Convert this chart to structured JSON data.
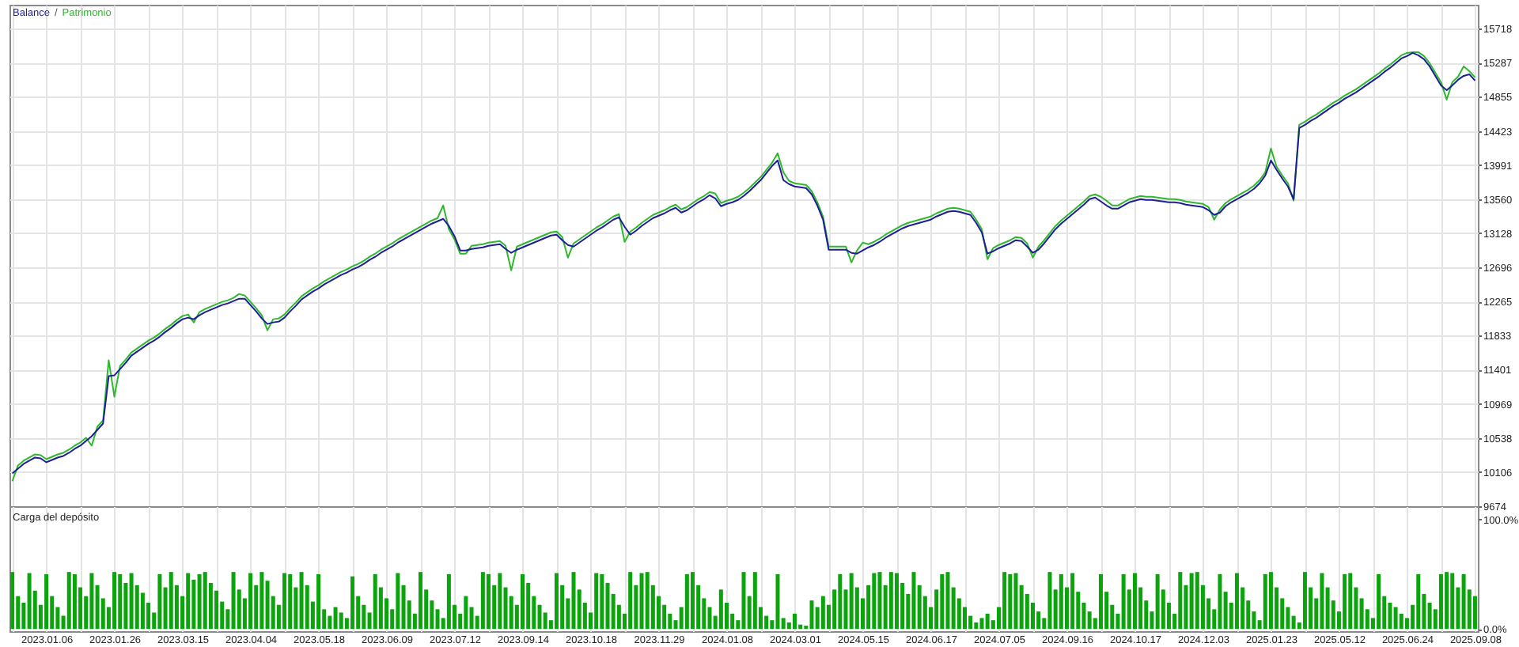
{
  "chart_data": [
    {
      "type": "line",
      "legend": "top left",
      "grid": true,
      "tick_labels": "y",
      "annotations": [
        "/"
      ],
      "categories": [
        null,
        null,
        null,
        null,
        null,
        null,
        "2023.01.06",
        null,
        null,
        null,
        null,
        null,
        null,
        null,
        null,
        null,
        null,
        null,
        "2023.01.26",
        null,
        null,
        null,
        null,
        null,
        null,
        null,
        null,
        null,
        null,
        null,
        "2023.03.15",
        null,
        null,
        null,
        null,
        null,
        null,
        null,
        null,
        null,
        null,
        null,
        "2023.04.04",
        null,
        null,
        null,
        null,
        null,
        null,
        null,
        null,
        null,
        null,
        null,
        "2023.05.18",
        null,
        null,
        null,
        null,
        null,
        null,
        null,
        null,
        null,
        null,
        null,
        "2023.06.09",
        null,
        null,
        null,
        null,
        null,
        null,
        null,
        null,
        null,
        null,
        null,
        "2023.07.12",
        null,
        null,
        null,
        null,
        null,
        null,
        null,
        null,
        null,
        null,
        null,
        "2023.09.14",
        null,
        null,
        null,
        null,
        null,
        null,
        null,
        null,
        null,
        null,
        null,
        "2023.10.18",
        null,
        null,
        null,
        null,
        null,
        null,
        null,
        null,
        null,
        null,
        null,
        "2023.11.29",
        null,
        null,
        null,
        null,
        null,
        null,
        null,
        null,
        null,
        null,
        null,
        "2024.01.08",
        null,
        null,
        null,
        null,
        null,
        null,
        null,
        null,
        null,
        null,
        null,
        "2024.03.01",
        null,
        null,
        null,
        null,
        null,
        null,
        null,
        null,
        null,
        null,
        null,
        "2024.05.15",
        null,
        null,
        null,
        null,
        null,
        null,
        null,
        null,
        null,
        null,
        null,
        "2024.06.17",
        null,
        null,
        null,
        null,
        null,
        null,
        null,
        null,
        null,
        null,
        null,
        "2024.07.05",
        null,
        null,
        null,
        null,
        null,
        null,
        null,
        null,
        null,
        null,
        null,
        "2024.09.16",
        null,
        null,
        null,
        null,
        null,
        null,
        null,
        null,
        null,
        null,
        null,
        "2024.10.17",
        null,
        null,
        null,
        null,
        null,
        null,
        null,
        null,
        null,
        null,
        null,
        "2024.12.03",
        null,
        null,
        null,
        null,
        null,
        null,
        null,
        null,
        null,
        null,
        null,
        "2025.01.23",
        null,
        null,
        null,
        null,
        null,
        null,
        null,
        null,
        null,
        null,
        null,
        "2025.05.12",
        null,
        null,
        null,
        null,
        null,
        null,
        null,
        null,
        null,
        null,
        null,
        "2025.06.24",
        null,
        null,
        null,
        null,
        null,
        null,
        null,
        null,
        null,
        null,
        null,
        "2025.09.08"
      ],
      "ylim": [
        9674,
        16020
      ],
      "yticks": [
        9674,
        10106,
        10538,
        10969,
        11401,
        11833,
        12265,
        12696,
        13128,
        13560,
        13991,
        14423,
        14855,
        15287,
        15718
      ],
      "series": [
        {
          "name": "Balance",
          "color": "#1e1e96",
          "values": [
            10090,
            10150,
            10210,
            10250,
            10290,
            10280,
            10230,
            10260,
            10290,
            10310,
            10350,
            10400,
            10440,
            10500,
            10560,
            10640,
            10720,
            11320,
            11330,
            11410,
            11490,
            11580,
            11630,
            11680,
            11730,
            11770,
            11820,
            11880,
            11930,
            11990,
            12040,
            12060,
            12040,
            12090,
            12130,
            12160,
            12190,
            12220,
            12240,
            12270,
            12300,
            12300,
            12220,
            12140,
            12050,
            11980,
            12000,
            12010,
            12060,
            12140,
            12210,
            12290,
            12340,
            12390,
            12430,
            12480,
            12520,
            12560,
            12600,
            12630,
            12670,
            12700,
            12740,
            12790,
            12830,
            12880,
            12920,
            12960,
            13010,
            13050,
            13090,
            13130,
            13170,
            13210,
            13250,
            13280,
            13310,
            13220,
            13090,
            12910,
            12910,
            12930,
            12940,
            12950,
            12970,
            12980,
            12990,
            12930,
            12880,
            12920,
            12950,
            12980,
            13010,
            13040,
            13070,
            13100,
            13110,
            13040,
            12980,
            12960,
            13010,
            13060,
            13110,
            13160,
            13200,
            13250,
            13300,
            13330,
            13210,
            13110,
            13160,
            13220,
            13270,
            13320,
            13350,
            13380,
            13420,
            13450,
            13390,
            13420,
            13470,
            13520,
            13560,
            13610,
            13570,
            13470,
            13500,
            13520,
            13550,
            13600,
            13660,
            13730,
            13800,
            13890,
            13980,
            14050,
            13800,
            13750,
            13720,
            13710,
            13700,
            13620,
            13480,
            13300,
            12920,
            12920,
            12920,
            12920,
            12880,
            12870,
            12910,
            12950,
            12980,
            13020,
            13070,
            13110,
            13150,
            13190,
            13220,
            13240,
            13260,
            13280,
            13300,
            13340,
            13370,
            13400,
            13410,
            13400,
            13380,
            13360,
            13260,
            13140,
            12870,
            12900,
            12940,
            12970,
            13000,
            13040,
            13030,
            12960,
            12880,
            12920,
            13000,
            13090,
            13180,
            13250,
            13310,
            13370,
            13430,
            13490,
            13560,
            13580,
            13530,
            13480,
            13440,
            13440,
            13480,
            13520,
            13540,
            13560,
            13550,
            13550,
            13540,
            13530,
            13520,
            13520,
            13510,
            13490,
            13480,
            13470,
            13460,
            13420,
            13360,
            13390,
            13470,
            13520,
            13560,
            13600,
            13640,
            13690,
            13760,
            13860,
            14050,
            13930,
            13820,
            13720,
            13560,
            14460,
            14500,
            14550,
            14590,
            14640,
            14690,
            14740,
            14780,
            14830,
            14870,
            14910,
            14960,
            15010,
            15060,
            15110,
            15170,
            15220,
            15280,
            15340,
            15370,
            15410,
            15380,
            15330,
            15240,
            15120,
            15000,
            14940,
            15000,
            15070,
            15120,
            15140,
            15060
          ]
        },
        {
          "name": "Patrimonio",
          "color": "#2fb82f",
          "values": [
            9990,
            10190,
            10250,
            10290,
            10330,
            10320,
            10270,
            10300,
            10330,
            10350,
            10390,
            10440,
            10480,
            10540,
            10440,
            10680,
            10760,
            11520,
            11060,
            11450,
            11530,
            11620,
            11670,
            11720,
            11770,
            11810,
            11860,
            11920,
            11970,
            12030,
            12080,
            12100,
            12000,
            12130,
            12170,
            12200,
            12230,
            12260,
            12280,
            12310,
            12360,
            12340,
            12260,
            12180,
            12090,
            11900,
            12040,
            12050,
            12100,
            12180,
            12250,
            12330,
            12380,
            12430,
            12470,
            12520,
            12560,
            12600,
            12640,
            12670,
            12710,
            12740,
            12780,
            12830,
            12870,
            12920,
            12960,
            13000,
            13050,
            13090,
            13130,
            13170,
            13210,
            13250,
            13290,
            13320,
            13480,
            13180,
            13050,
            12870,
            12870,
            12970,
            12980,
            12990,
            13010,
            13020,
            13030,
            12970,
            12660,
            12960,
            12990,
            13020,
            13050,
            13080,
            13110,
            13140,
            13150,
            13080,
            12820,
            13000,
            13050,
            13100,
            13150,
            13200,
            13240,
            13290,
            13340,
            13370,
            13020,
            13150,
            13200,
            13260,
            13310,
            13360,
            13390,
            13420,
            13460,
            13490,
            13430,
            13460,
            13510,
            13560,
            13600,
            13650,
            13630,
            13510,
            13540,
            13560,
            13590,
            13640,
            13700,
            13770,
            13840,
            13930,
            14020,
            14140,
            13900,
            13790,
            13760,
            13750,
            13740,
            13660,
            13520,
            13340,
            12960,
            12960,
            12960,
            12960,
            12760,
            12910,
            13010,
            12990,
            13020,
            13060,
            13110,
            13150,
            13190,
            13230,
            13260,
            13280,
            13300,
            13320,
            13340,
            13380,
            13410,
            13440,
            13450,
            13440,
            13420,
            13400,
            13300,
            13180,
            12800,
            12940,
            12980,
            13010,
            13040,
            13080,
            13070,
            13000,
            12820,
            12960,
            13040,
            13130,
            13220,
            13290,
            13350,
            13410,
            13470,
            13530,
            13600,
            13620,
            13590,
            13540,
            13480,
            13480,
            13520,
            13560,
            13580,
            13600,
            13590,
            13590,
            13580,
            13570,
            13560,
            13560,
            13550,
            13530,
            13520,
            13510,
            13500,
            13460,
            13300,
            13430,
            13510,
            13560,
            13600,
            13640,
            13680,
            13730,
            13800,
            13900,
            14200,
            13970,
            13860,
            13760,
            13540,
            14500,
            14540,
            14590,
            14630,
            14680,
            14730,
            14780,
            14820,
            14870,
            14910,
            14950,
            15000,
            15050,
            15100,
            15150,
            15210,
            15260,
            15320,
            15380,
            15410,
            15420,
            15420,
            15370,
            15280,
            15160,
            15040,
            14820,
            15040,
            15110,
            15240,
            15180,
            15100
          ]
        }
      ]
    },
    {
      "type": "bar",
      "title": "Carga del depósito",
      "grid": "x",
      "color": "#0ca40c",
      "categories": [
        null,
        null,
        null,
        null,
        null,
        null,
        "2023.01.06",
        null,
        null,
        null,
        null,
        null,
        null,
        null,
        null,
        null,
        null,
        null,
        "2023.01.26",
        null,
        null,
        null,
        null,
        null,
        null,
        null,
        null,
        null,
        null,
        null,
        "2023.03.15",
        null,
        null,
        null,
        null,
        null,
        null,
        null,
        null,
        null,
        null,
        null,
        "2023.04.04",
        null,
        null,
        null,
        null,
        null,
        null,
        null,
        null,
        null,
        null,
        null,
        "2023.05.18",
        null,
        null,
        null,
        null,
        null,
        null,
        null,
        null,
        null,
        null,
        null,
        "2023.06.09",
        null,
        null,
        null,
        null,
        null,
        null,
        null,
        null,
        null,
        null,
        null,
        "2023.07.12",
        null,
        null,
        null,
        null,
        null,
        null,
        null,
        null,
        null,
        null,
        null,
        "2023.09.14",
        null,
        null,
        null,
        null,
        null,
        null,
        null,
        null,
        null,
        null,
        null,
        "2023.10.18",
        null,
        null,
        null,
        null,
        null,
        null,
        null,
        null,
        null,
        null,
        null,
        "2023.11.29",
        null,
        null,
        null,
        null,
        null,
        null,
        null,
        null,
        null,
        null,
        null,
        "2024.01.08",
        null,
        null,
        null,
        null,
        null,
        null,
        null,
        null,
        null,
        null,
        null,
        "2024.03.01",
        null,
        null,
        null,
        null,
        null,
        null,
        null,
        null,
        null,
        null,
        null,
        "2024.05.15",
        null,
        null,
        null,
        null,
        null,
        null,
        null,
        null,
        null,
        null,
        null,
        "2024.06.17",
        null,
        null,
        null,
        null,
        null,
        null,
        null,
        null,
        null,
        null,
        null,
        "2024.07.05",
        null,
        null,
        null,
        null,
        null,
        null,
        null,
        null,
        null,
        null,
        null,
        "2024.09.16",
        null,
        null,
        null,
        null,
        null,
        null,
        null,
        null,
        null,
        null,
        null,
        "2024.10.17",
        null,
        null,
        null,
        null,
        null,
        null,
        null,
        null,
        null,
        null,
        null,
        "2024.12.03",
        null,
        null,
        null,
        null,
        null,
        null,
        null,
        null,
        null,
        null,
        null,
        "2025.01.23",
        null,
        null,
        null,
        null,
        null,
        null,
        null,
        null,
        null,
        null,
        null,
        "2025.05.12",
        null,
        null,
        null,
        null,
        null,
        null,
        null,
        null,
        null,
        null,
        null,
        "2025.06.24",
        null,
        null,
        null,
        null,
        null,
        null,
        null,
        null,
        null,
        null,
        null,
        "2025.09.08"
      ],
      "ylim": [
        -2,
        112
      ],
      "yticks": [
        {
          "value": 0,
          "label": "0.0%"
        },
        {
          "value": 100,
          "label": "100.0%"
        }
      ],
      "values": [
        52,
        30,
        24,
        51,
        35,
        22,
        50,
        30,
        20,
        12,
        52,
        50,
        38,
        30,
        51,
        40,
        28,
        20,
        52,
        50,
        42,
        51,
        40,
        33,
        24,
        15,
        50,
        38,
        52,
        40,
        30,
        51,
        45,
        50,
        52,
        42,
        35,
        25,
        18,
        52,
        36,
        28,
        51,
        40,
        52,
        44,
        30,
        22,
        51,
        50,
        38,
        52,
        40,
        25,
        50,
        18,
        12,
        20,
        15,
        10,
        48,
        30,
        22,
        15,
        50,
        38,
        28,
        18,
        51,
        40,
        26,
        14,
        52,
        36,
        26,
        18,
        10,
        50,
        22,
        14,
        30,
        20,
        12,
        52,
        50,
        40,
        51,
        38,
        30,
        22,
        50,
        42,
        30,
        22,
        15,
        8,
        51,
        40,
        28,
        52,
        36,
        24,
        15,
        51,
        50,
        42,
        32,
        22,
        14,
        52,
        40,
        51,
        52,
        40,
        30,
        22,
        14,
        8,
        20,
        50,
        52,
        40,
        28,
        20,
        12,
        36,
        24,
        14,
        8,
        52,
        30,
        52,
        20,
        12,
        8,
        50,
        10,
        6,
        14,
        4,
        3,
        26,
        20,
        30,
        22,
        36,
        50,
        36,
        51,
        38,
        28,
        40,
        51,
        52,
        40,
        52,
        51,
        42,
        32,
        52,
        40,
        30,
        20,
        36,
        50,
        52,
        38,
        28,
        20,
        12,
        6,
        10,
        14,
        8,
        20,
        52,
        50,
        51,
        40,
        32,
        24,
        16,
        10,
        52,
        36,
        50,
        38,
        51,
        34,
        24,
        16,
        10,
        50,
        34,
        22,
        14,
        50,
        36,
        51,
        38,
        26,
        16,
        50,
        36,
        24,
        14,
        52,
        40,
        51,
        52,
        40,
        28,
        18,
        50,
        34,
        24,
        51,
        38,
        26,
        16,
        8,
        50,
        52,
        38,
        28,
        20,
        12,
        6,
        52,
        38,
        28,
        51,
        38,
        26,
        16,
        50,
        51,
        38,
        28,
        18,
        10,
        50,
        30,
        24,
        20,
        14,
        10,
        22,
        50,
        32,
        24,
        18,
        50,
        52,
        51,
        38,
        50,
        36,
        30
      ]
    }
  ]
}
